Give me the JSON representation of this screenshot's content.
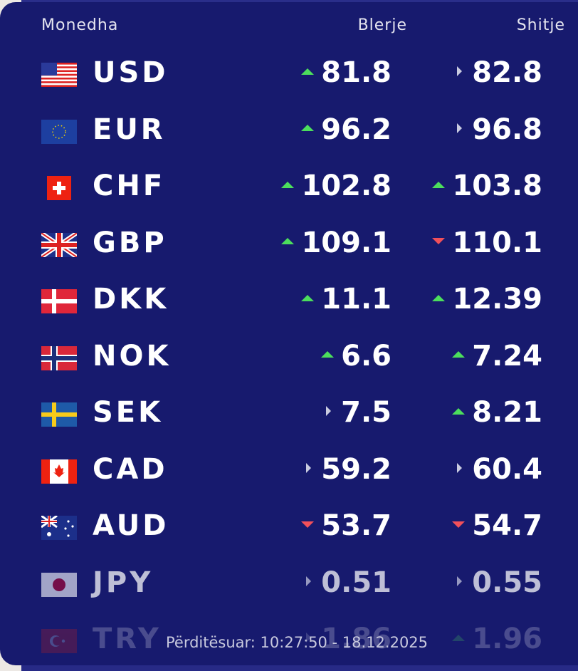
{
  "header": {
    "currency": "Monedha",
    "buy": "Blerje",
    "sell": "Shitje"
  },
  "colors": {
    "background": "#171a6e",
    "up": "#4cde5c",
    "down": "#f2505a",
    "flat": "#c9cbe0"
  },
  "rates": [
    {
      "code": "USD",
      "flag": "us-flag",
      "buy": "81.8",
      "buy_trend": "up",
      "sell": "82.8",
      "sell_trend": "flat"
    },
    {
      "code": "EUR",
      "flag": "eu-flag",
      "buy": "96.2",
      "buy_trend": "up",
      "sell": "96.8",
      "sell_trend": "flat"
    },
    {
      "code": "CHF",
      "flag": "ch-flag",
      "buy": "102.8",
      "buy_trend": "up",
      "sell": "103.8",
      "sell_trend": "up"
    },
    {
      "code": "GBP",
      "flag": "gb-flag",
      "buy": "109.1",
      "buy_trend": "up",
      "sell": "110.1",
      "sell_trend": "down"
    },
    {
      "code": "DKK",
      "flag": "dk-flag",
      "buy": "11.1",
      "buy_trend": "up",
      "sell": "12.39",
      "sell_trend": "up"
    },
    {
      "code": "NOK",
      "flag": "no-flag",
      "buy": "6.6",
      "buy_trend": "up",
      "sell": "7.24",
      "sell_trend": "up"
    },
    {
      "code": "SEK",
      "flag": "se-flag",
      "buy": "7.5",
      "buy_trend": "flat",
      "sell": "8.21",
      "sell_trend": "up"
    },
    {
      "code": "CAD",
      "flag": "ca-flag",
      "buy": "59.2",
      "buy_trend": "flat",
      "sell": "60.4",
      "sell_trend": "flat"
    },
    {
      "code": "AUD",
      "flag": "au-flag",
      "buy": "53.7",
      "buy_trend": "down",
      "sell": "54.7",
      "sell_trend": "down"
    },
    {
      "code": "JPY",
      "flag": "jp-flag",
      "buy": "0.51",
      "buy_trend": "flat",
      "sell": "0.55",
      "sell_trend": "flat"
    },
    {
      "code": "TRY",
      "flag": "tr-flag",
      "buy": "1.86",
      "buy_trend": "flat",
      "sell": "1.96",
      "sell_trend": "up"
    }
  ],
  "updated": "Përditësuar: 10:27:50 - 18.12.2025"
}
